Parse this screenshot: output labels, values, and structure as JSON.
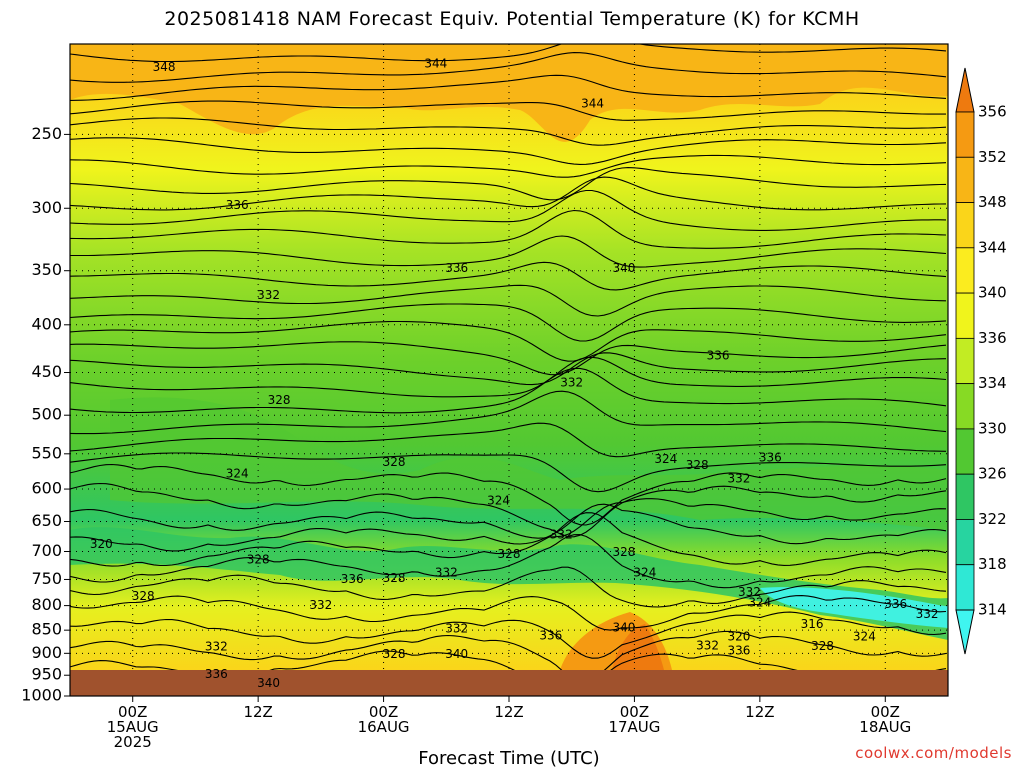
{
  "title": "2025081418 NAM Forecast Equiv. Potential Temperature (K) for KCMH",
  "credit": "coolwx.com/models",
  "chart_data": {
    "type": "heatmap",
    "title": "2025081418 NAM Forecast Equiv. Potential Temperature (K) for KCMH",
    "xlabel": "Forecast Time (UTC)",
    "ylabel": "",
    "y_ticks": [
      250,
      300,
      350,
      400,
      450,
      500,
      550,
      600,
      650,
      700,
      750,
      800,
      850,
      900,
      950,
      1000
    ],
    "y_range": [
      200,
      1000
    ],
    "y_scale": "log-pressure",
    "x_range_hours": [
      0,
      84
    ],
    "x_ticks": [
      {
        "hour": 6,
        "lines": [
          "00Z",
          "15AUG",
          "2025"
        ]
      },
      {
        "hour": 18,
        "lines": [
          "12Z"
        ]
      },
      {
        "hour": 30,
        "lines": [
          "00Z",
          "16AUG"
        ]
      },
      {
        "hour": 42,
        "lines": [
          "12Z"
        ]
      },
      {
        "hour": 54,
        "lines": [
          "00Z",
          "17AUG"
        ]
      },
      {
        "hour": 66,
        "lines": [
          "12Z"
        ]
      },
      {
        "hour": 78,
        "lines": [
          "00Z",
          "18AUG"
        ]
      }
    ],
    "grid": true,
    "colorbar": {
      "labels": [
        356,
        352,
        348,
        344,
        340,
        336,
        334,
        330,
        326,
        322,
        318,
        314
      ],
      "colors": [
        "#ee7a0f",
        "#f59a12",
        "#f8b516",
        "#fad51a",
        "#fbec1f",
        "#f0f41c",
        "#c2ec23",
        "#87da24",
        "#52c832",
        "#2fc663",
        "#27d4a0",
        "#2fe8d5",
        "#3ff5f0"
      ]
    },
    "contour_labels": [
      {
        "value": 348,
        "hour": 9,
        "p": 212
      },
      {
        "value": 344,
        "hour": 35,
        "p": 210
      },
      {
        "value": 344,
        "hour": 50,
        "p": 232
      },
      {
        "value": 336,
        "hour": 16,
        "p": 298
      },
      {
        "value": 336,
        "hour": 37,
        "p": 348
      },
      {
        "value": 340,
        "hour": 53,
        "p": 348
      },
      {
        "value": 332,
        "hour": 19,
        "p": 372
      },
      {
        "value": 332,
        "hour": 48,
        "p": 462
      },
      {
        "value": 336,
        "hour": 62,
        "p": 432
      },
      {
        "value": 328,
        "hour": 20,
        "p": 482
      },
      {
        "value": 324,
        "hour": 16,
        "p": 578
      },
      {
        "value": 328,
        "hour": 31,
        "p": 562
      },
      {
        "value": 324,
        "hour": 41,
        "p": 618
      },
      {
        "value": 324,
        "hour": 57,
        "p": 558
      },
      {
        "value": 328,
        "hour": 60,
        "p": 566
      },
      {
        "value": 336,
        "hour": 67,
        "p": 556
      },
      {
        "value": 332,
        "hour": 64,
        "p": 585
      },
      {
        "value": 332,
        "hour": 47,
        "p": 672
      },
      {
        "value": 328,
        "hour": 42,
        "p": 705
      },
      {
        "value": 328,
        "hour": 53,
        "p": 702
      },
      {
        "value": 324,
        "hour": 55,
        "p": 738
      },
      {
        "value": 320,
        "hour": 3,
        "p": 688
      },
      {
        "value": 328,
        "hour": 18,
        "p": 715
      },
      {
        "value": 328,
        "hour": 7,
        "p": 782
      },
      {
        "value": 336,
        "hour": 27,
        "p": 750
      },
      {
        "value": 328,
        "hour": 31,
        "p": 748
      },
      {
        "value": 332,
        "hour": 36,
        "p": 738
      },
      {
        "value": 332,
        "hour": 24,
        "p": 800
      },
      {
        "value": 332,
        "hour": 65,
        "p": 775
      },
      {
        "value": 324,
        "hour": 66,
        "p": 795
      },
      {
        "value": 336,
        "hour": 79,
        "p": 798
      },
      {
        "value": 332,
        "hour": 82,
        "p": 818
      },
      {
        "value": 316,
        "hour": 71,
        "p": 838
      },
      {
        "value": 324,
        "hour": 76,
        "p": 865
      },
      {
        "value": 328,
        "hour": 72,
        "p": 885
      },
      {
        "value": 320,
        "hour": 64,
        "p": 865
      },
      {
        "value": 332,
        "hour": 61,
        "p": 884
      },
      {
        "value": 336,
        "hour": 64,
        "p": 895
      },
      {
        "value": 332,
        "hour": 14,
        "p": 886
      },
      {
        "value": 332,
        "hour": 37,
        "p": 848
      },
      {
        "value": 336,
        "hour": 46,
        "p": 862
      },
      {
        "value": 340,
        "hour": 53,
        "p": 845
      },
      {
        "value": 340,
        "hour": 37,
        "p": 903
      },
      {
        "value": 328,
        "hour": 31,
        "p": 903
      },
      {
        "value": 336,
        "hour": 14,
        "p": 948
      },
      {
        "value": 340,
        "hour": 19,
        "p": 970
      }
    ]
  }
}
